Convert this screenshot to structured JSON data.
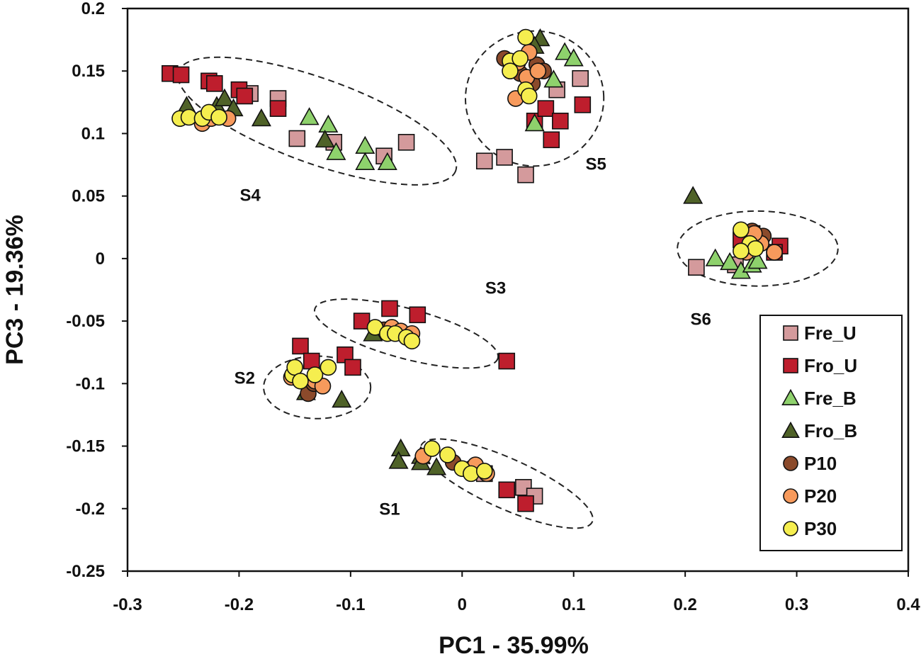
{
  "chart_data": {
    "type": "scatter",
    "title": "",
    "xlabel": "PC1 - 35.99%",
    "ylabel": "PC3 - 19.36%",
    "xlim": [
      -0.3,
      0.4
    ],
    "ylim": [
      -0.25,
      0.2
    ],
    "xticks": [
      "-0.3",
      "-0.2",
      "-0.1",
      "0",
      "0.1",
      "0.2",
      "0.3",
      "0.4"
    ],
    "yticks": [
      "0.2",
      "0.15",
      "0.1",
      "0.05",
      "0",
      "-0.05",
      "-0.1",
      "-0.15",
      "-0.2",
      "-0.25"
    ],
    "legend_position": "bottom-right",
    "series": [
      {
        "name": "Fre_U",
        "marker": "square",
        "color": "#d49a9c",
        "points": [
          [
            -0.165,
            0.128
          ],
          [
            -0.19,
            0.132
          ],
          [
            -0.148,
            0.096
          ],
          [
            -0.115,
            0.093
          ],
          [
            -0.07,
            0.082
          ],
          [
            -0.05,
            0.093
          ],
          [
            0.02,
            0.078
          ],
          [
            0.038,
            0.081
          ],
          [
            0.057,
            0.067
          ],
          [
            0.085,
            0.135
          ],
          [
            0.106,
            0.144
          ],
          [
            0.21,
            -0.007
          ],
          [
            0.245,
            -0.005
          ],
          [
            0.02,
            -0.172
          ],
          [
            0.055,
            -0.183
          ],
          [
            0.065,
            -0.19
          ]
        ]
      },
      {
        "name": "Fro_U",
        "marker": "square",
        "color": "#be1e2d",
        "points": [
          [
            -0.262,
            0.148
          ],
          [
            -0.252,
            0.147
          ],
          [
            -0.227,
            0.142
          ],
          [
            -0.222,
            0.14
          ],
          [
            -0.2,
            0.135
          ],
          [
            -0.195,
            0.13
          ],
          [
            -0.165,
            0.12
          ],
          [
            0.065,
            0.11
          ],
          [
            0.075,
            0.12
          ],
          [
            0.08,
            0.095
          ],
          [
            0.088,
            0.11
          ],
          [
            0.108,
            0.123
          ],
          [
            -0.09,
            -0.05
          ],
          [
            -0.065,
            -0.04
          ],
          [
            -0.04,
            -0.045
          ],
          [
            -0.145,
            -0.07
          ],
          [
            -0.135,
            -0.082
          ],
          [
            -0.105,
            -0.077
          ],
          [
            -0.098,
            -0.087
          ],
          [
            0.04,
            -0.082
          ],
          [
            0.04,
            -0.185
          ],
          [
            0.057,
            -0.196
          ],
          [
            0.26,
            0.02
          ],
          [
            0.285,
            0.01
          ],
          [
            0.28,
            0.005
          ],
          [
            0.25,
            0.015
          ]
        ]
      },
      {
        "name": "Fre_B",
        "marker": "triangle",
        "color": "#8ed16c",
        "points": [
          [
            -0.137,
            0.113
          ],
          [
            -0.12,
            0.107
          ],
          [
            -0.113,
            0.085
          ],
          [
            -0.087,
            0.09
          ],
          [
            -0.087,
            0.077
          ],
          [
            -0.067,
            0.077
          ],
          [
            0.065,
            0.108
          ],
          [
            0.082,
            0.143
          ],
          [
            0.092,
            0.165
          ],
          [
            0.1,
            0.16
          ],
          [
            0.227,
            0.0
          ],
          [
            0.24,
            -0.003
          ],
          [
            0.25,
            -0.01
          ],
          [
            0.26,
            -0.005
          ],
          [
            0.265,
            -0.002
          ]
        ]
      },
      {
        "name": "Fro_B",
        "marker": "triangle",
        "color": "#4f6228",
        "points": [
          [
            -0.247,
            0.122
          ],
          [
            -0.22,
            0.122
          ],
          [
            -0.213,
            0.128
          ],
          [
            -0.205,
            0.12
          ],
          [
            -0.18,
            0.112
          ],
          [
            -0.123,
            0.095
          ],
          [
            0.07,
            0.176
          ],
          [
            0.065,
            0.17
          ],
          [
            -0.055,
            -0.152
          ],
          [
            -0.057,
            -0.162
          ],
          [
            -0.037,
            -0.158
          ],
          [
            -0.037,
            -0.163
          ],
          [
            -0.023,
            -0.167
          ],
          [
            -0.14,
            -0.107
          ],
          [
            -0.108,
            -0.113
          ],
          [
            -0.08,
            -0.06
          ],
          [
            0.207,
            0.05
          ]
        ]
      },
      {
        "name": "P10",
        "marker": "circle",
        "color": "#8b4a2b",
        "points": [
          [
            0.038,
            0.16
          ],
          [
            0.052,
            0.148
          ],
          [
            0.063,
            0.14
          ],
          [
            0.067,
            0.155
          ],
          [
            0.073,
            0.15
          ],
          [
            -0.008,
            -0.163
          ],
          [
            0.008,
            -0.168
          ],
          [
            -0.138,
            -0.108
          ],
          [
            -0.133,
            -0.1
          ],
          [
            -0.07,
            -0.057
          ],
          [
            0.26,
            0.022
          ],
          [
            0.27,
            0.018
          ]
        ]
      },
      {
        "name": "P20",
        "marker": "circle",
        "color": "#f79a5c",
        "points": [
          [
            -0.233,
            0.108
          ],
          [
            -0.225,
            0.112
          ],
          [
            -0.21,
            0.112
          ],
          [
            0.05,
            0.157
          ],
          [
            0.06,
            0.165
          ],
          [
            0.048,
            0.128
          ],
          [
            0.058,
            0.145
          ],
          [
            0.068,
            0.15
          ],
          [
            -0.063,
            -0.055
          ],
          [
            -0.055,
            -0.058
          ],
          [
            -0.045,
            -0.06
          ],
          [
            -0.153,
            -0.095
          ],
          [
            -0.132,
            -0.098
          ],
          [
            -0.125,
            -0.102
          ],
          [
            -0.035,
            -0.158
          ],
          [
            0.012,
            -0.165
          ],
          [
            0.022,
            -0.172
          ],
          [
            0.255,
            0.005
          ],
          [
            0.268,
            0.012
          ],
          [
            0.28,
            0.005
          ],
          [
            0.262,
            0.02
          ]
        ]
      },
      {
        "name": "P30",
        "marker": "circle",
        "color": "#f5ee4f",
        "points": [
          [
            -0.253,
            0.112
          ],
          [
            -0.245,
            0.113
          ],
          [
            -0.233,
            0.112
          ],
          [
            -0.227,
            0.117
          ],
          [
            -0.218,
            0.113
          ],
          [
            0.057,
            0.177
          ],
          [
            0.043,
            0.158
          ],
          [
            0.052,
            0.16
          ],
          [
            0.043,
            0.15
          ],
          [
            0.057,
            0.135
          ],
          [
            0.06,
            0.13
          ],
          [
            -0.078,
            -0.055
          ],
          [
            -0.067,
            -0.06
          ],
          [
            -0.06,
            -0.06
          ],
          [
            -0.05,
            -0.063
          ],
          [
            -0.045,
            -0.066
          ],
          [
            -0.152,
            -0.093
          ],
          [
            -0.15,
            -0.087
          ],
          [
            -0.145,
            -0.098
          ],
          [
            -0.132,
            -0.093
          ],
          [
            -0.12,
            -0.087
          ],
          [
            -0.027,
            -0.152
          ],
          [
            -0.013,
            -0.157
          ],
          [
            0.0,
            -0.168
          ],
          [
            0.008,
            -0.172
          ],
          [
            0.02,
            -0.17
          ],
          [
            0.25,
            0.023
          ],
          [
            0.258,
            0.012
          ],
          [
            0.263,
            0.008
          ],
          [
            0.25,
            0.006
          ]
        ]
      }
    ],
    "clusters": [
      {
        "label": "S1",
        "center": [
          0.04,
          -0.18
        ],
        "rx": 0.084,
        "ry": 0.02,
        "angle": -0.4,
        "label_at": [
          -0.065,
          -0.205
        ]
      },
      {
        "label": "S2",
        "center": [
          -0.13,
          -0.103
        ],
        "rx": 0.048,
        "ry": 0.025,
        "angle": 0.0,
        "label_at": [
          -0.195,
          -0.1
        ]
      },
      {
        "label": "S3",
        "center": [
          -0.05,
          -0.06
        ],
        "rx": 0.085,
        "ry": 0.02,
        "angle": -0.24,
        "label_at": [
          0.03,
          -0.028
        ]
      },
      {
        "label": "S4",
        "center": [
          -0.13,
          0.11
        ],
        "rx": 0.132,
        "ry": 0.034,
        "angle": -0.32,
        "label_at": [
          -0.19,
          0.046
        ]
      },
      {
        "label": "S5",
        "center": [
          0.065,
          0.128
        ],
        "rx": 0.062,
        "ry": 0.054,
        "angle": 0.05,
        "label_at": [
          0.12,
          0.071
        ]
      },
      {
        "label": "S6",
        "center": [
          0.265,
          0.008
        ],
        "rx": 0.072,
        "ry": 0.03,
        "angle": 0.0,
        "label_at": [
          0.214,
          -0.053
        ]
      }
    ]
  }
}
